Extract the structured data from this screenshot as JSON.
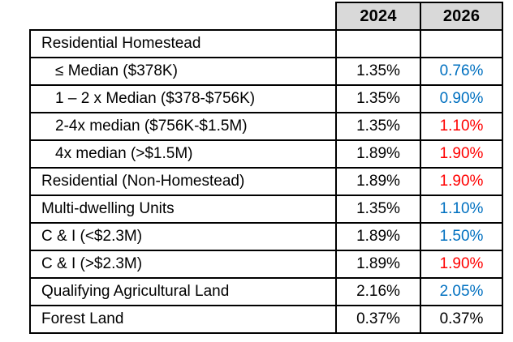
{
  "colors": {
    "value_decrease_blue": "#0070C0",
    "value_increase_red": "#FF0000",
    "header_bg": "#D9D9D9",
    "border": "#000000",
    "text": "#000000"
  },
  "chart_data": {
    "type": "table",
    "columns": [
      "",
      "2024",
      "2026"
    ],
    "rows": [
      {
        "category": "Residential Homestead",
        "indent": "main",
        "y2024": "",
        "y2026": "",
        "color_2026": "black"
      },
      {
        "category": "≤ Median ($378K)",
        "indent": "sub",
        "y2024": "1.35%",
        "y2026": "0.76%",
        "color_2026": "blue"
      },
      {
        "category": "1 – 2 x Median ($378-$756K)",
        "indent": "sub",
        "y2024": "1.35%",
        "y2026": "0.90%",
        "color_2026": "blue"
      },
      {
        "category": "2-4x median ($756K-$1.5M)",
        "indent": "sub",
        "y2024": "1.35%",
        "y2026": "1.10%",
        "color_2026": "red"
      },
      {
        "category": "4x median (>$1.5M)",
        "indent": "sub",
        "y2024": "1.89%",
        "y2026": "1.90%",
        "color_2026": "red"
      },
      {
        "category": "Residential (Non-Homestead)",
        "indent": "main",
        "y2024": "1.89%",
        "y2026": "1.90%",
        "color_2026": "red"
      },
      {
        "category": "Multi-dwelling Units",
        "indent": "main",
        "y2024": "1.35%",
        "y2026": "1.10%",
        "color_2026": "blue"
      },
      {
        "category": "C & I (<$2.3M)",
        "indent": "main",
        "y2024": "1.89%",
        "y2026": "1.50%",
        "color_2026": "blue"
      },
      {
        "category": "C & I (>$2.3M)",
        "indent": "main",
        "y2024": "1.89%",
        "y2026": "1.90%",
        "color_2026": "red"
      },
      {
        "category": "Qualifying Agricultural Land",
        "indent": "main",
        "y2024": "2.16%",
        "y2026": "2.05%",
        "color_2026": "blue"
      },
      {
        "category": "Forest Land",
        "indent": "main",
        "y2024": "0.37%",
        "y2026": "0.37%",
        "color_2026": "black"
      }
    ]
  }
}
